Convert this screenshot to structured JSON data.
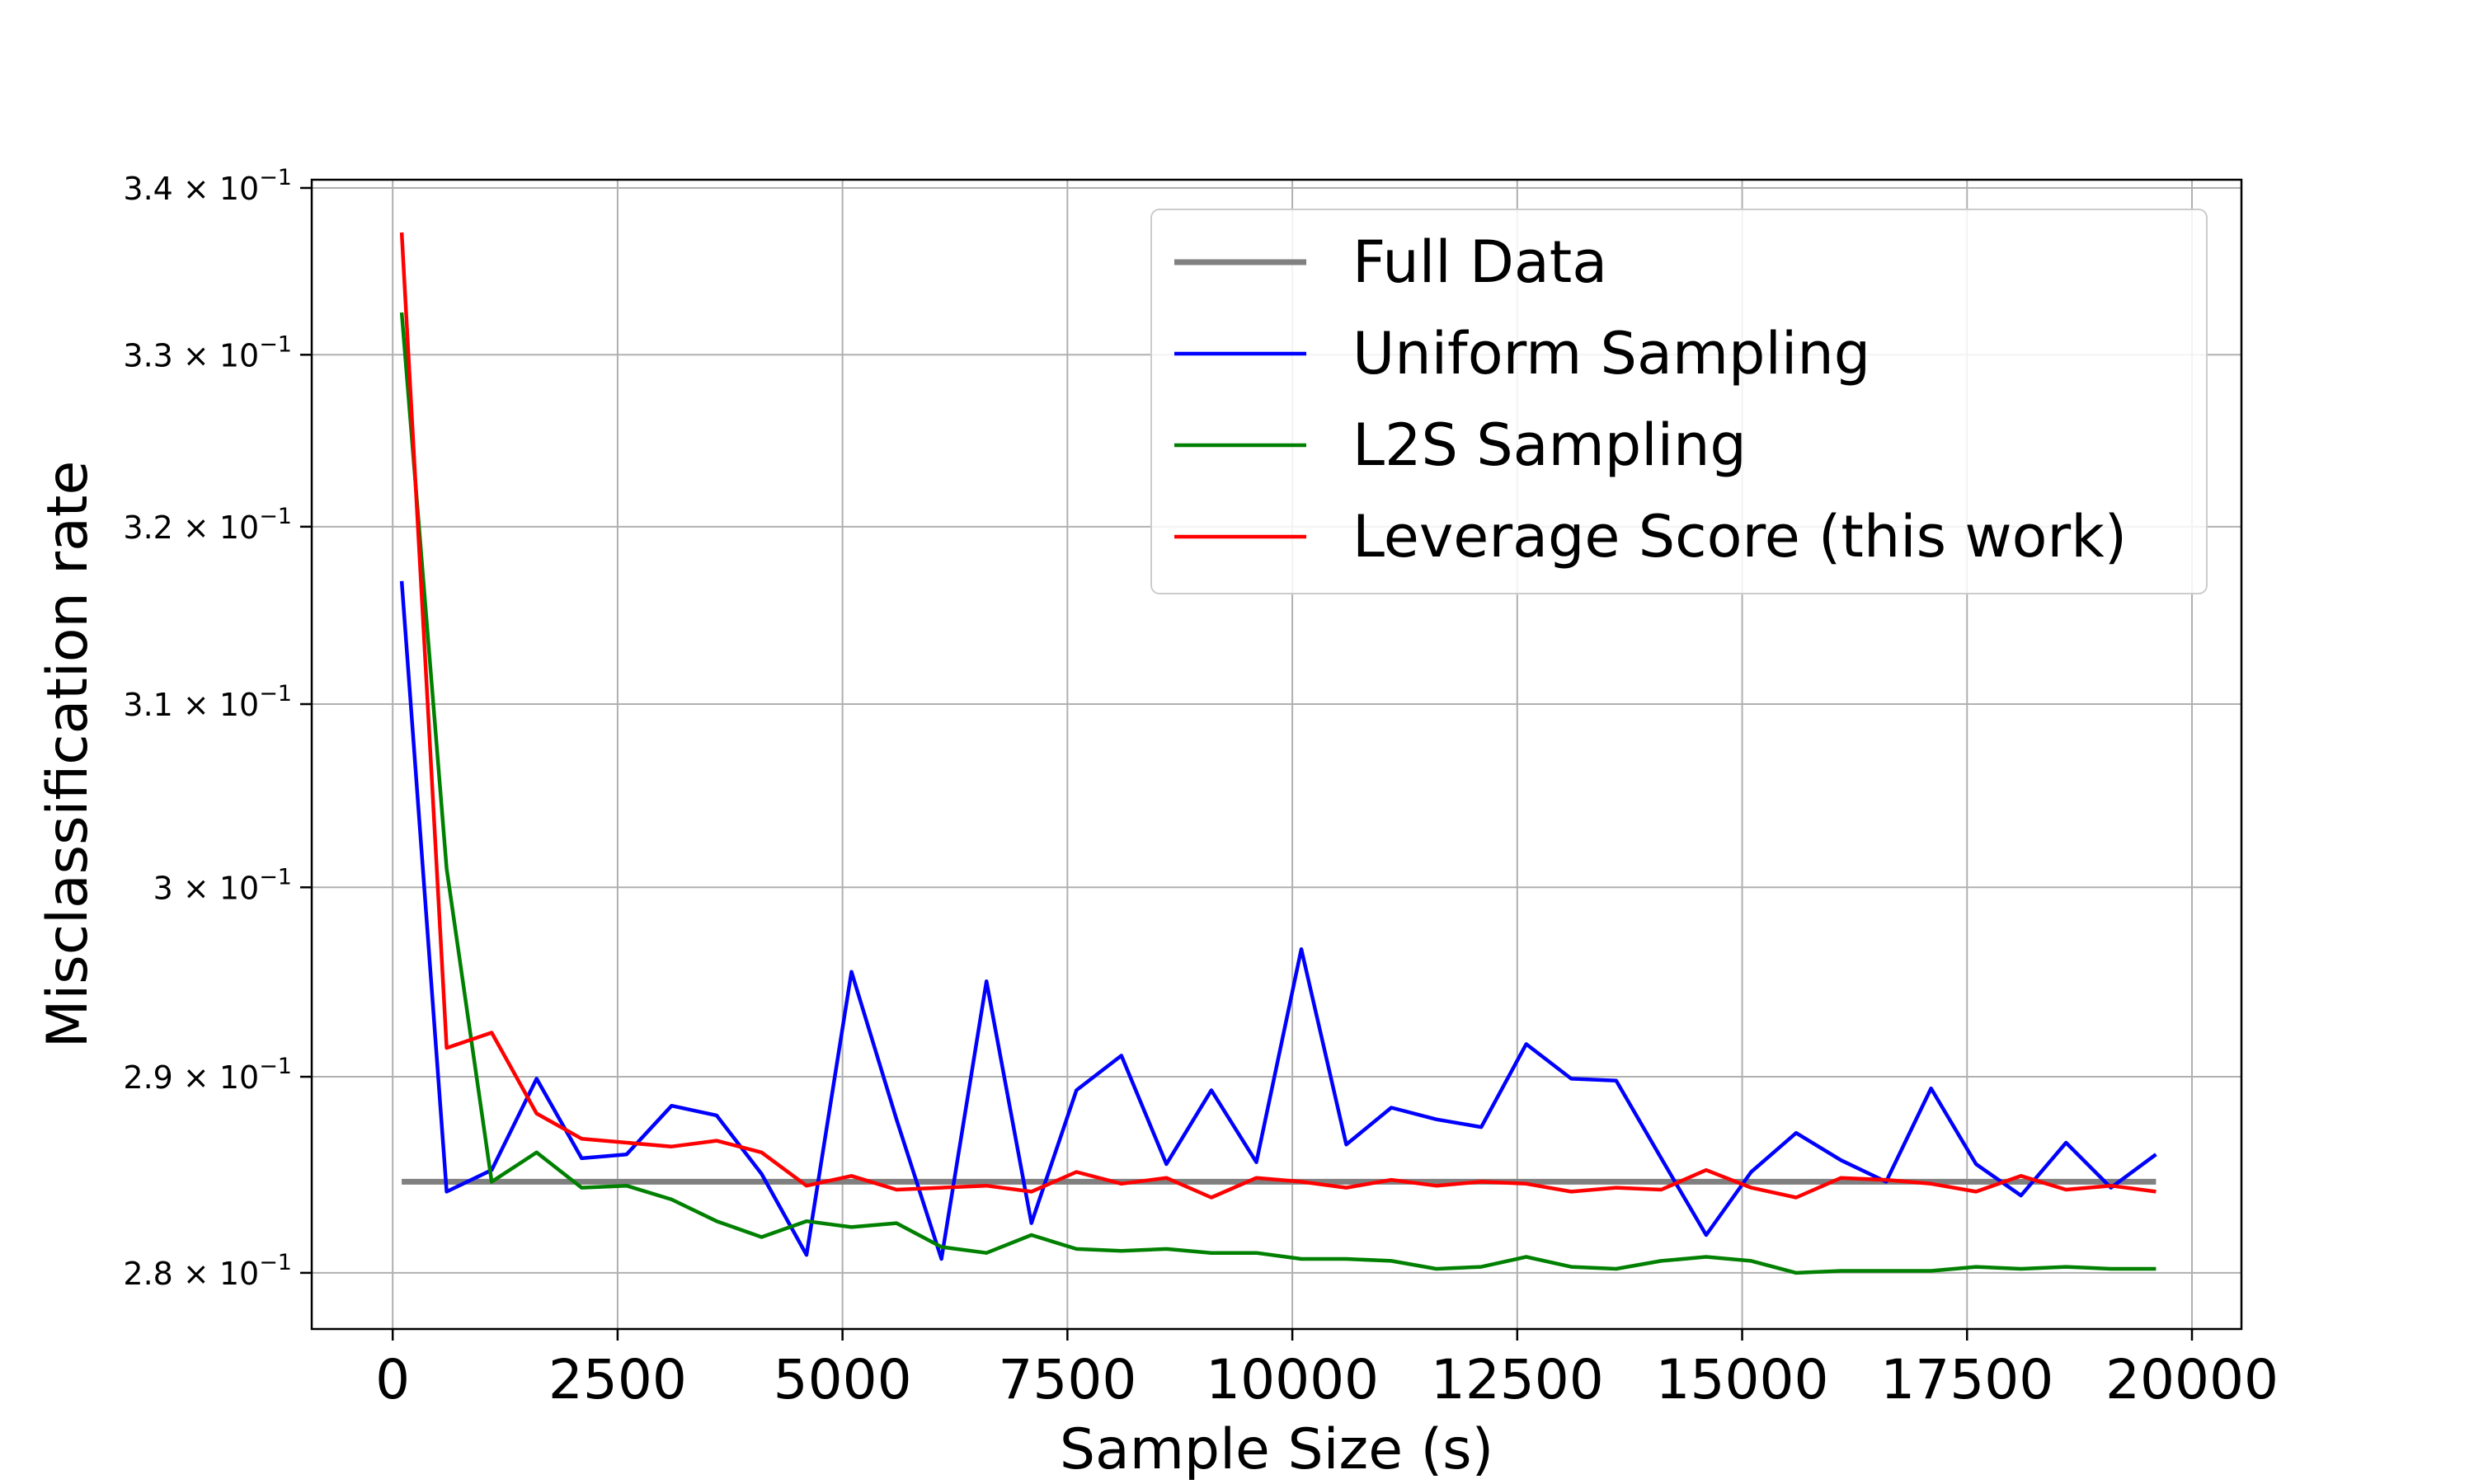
{
  "chart_data": {
    "type": "line",
    "xlabel": "Sample Size (s)",
    "ylabel": "Misclassification rate",
    "xlim": [
      -900,
      20550
    ],
    "ylim": [
      0.2772,
      0.3405
    ],
    "y_scale": "log",
    "grid": true,
    "legend_position": "top-right",
    "x_ticks": [
      {
        "value": 0,
        "label": "0"
      },
      {
        "value": 2500,
        "label": "2500"
      },
      {
        "value": 5000,
        "label": "5000"
      },
      {
        "value": 7500,
        "label": "7500"
      },
      {
        "value": 10000,
        "label": "10000"
      },
      {
        "value": 12500,
        "label": "12500"
      },
      {
        "value": 15000,
        "label": "15000"
      },
      {
        "value": 17500,
        "label": "17500"
      },
      {
        "value": 20000,
        "label": "20000"
      }
    ],
    "y_ticks": [
      {
        "value": 0.28,
        "mant": "2.8",
        "base": "10",
        "exp": "−1"
      },
      {
        "value": 0.29,
        "mant": "2.9",
        "base": "10",
        "exp": "−1"
      },
      {
        "value": 0.3,
        "mant": "3",
        "base": "10",
        "exp": "−1"
      },
      {
        "value": 0.31,
        "mant": "3.1",
        "base": "10",
        "exp": "−1"
      },
      {
        "value": 0.32,
        "mant": "3.2",
        "base": "10",
        "exp": "−1"
      },
      {
        "value": 0.33,
        "mant": "3.3",
        "base": "10",
        "exp": "−1"
      },
      {
        "value": 0.34,
        "mant": "3.4",
        "base": "10",
        "exp": "−1"
      }
    ],
    "x": [
      100,
      600,
      1100,
      1600,
      2100,
      2600,
      3100,
      3600,
      4100,
      4600,
      5100,
      5600,
      6100,
      6600,
      7100,
      7600,
      8100,
      8600,
      9100,
      9600,
      10100,
      10600,
      11100,
      11600,
      12100,
      12600,
      13100,
      13600,
      14100,
      14600,
      15100,
      15600,
      16100,
      16600,
      17100,
      17600,
      18100,
      18600,
      19100,
      19600
    ],
    "series": [
      {
        "name": "Full Data",
        "color": "#808080",
        "values": [
          0.2846,
          0.2846,
          0.2846,
          0.2846,
          0.2846,
          0.2846,
          0.2846,
          0.2846,
          0.2846,
          0.2846,
          0.2846,
          0.2846,
          0.2846,
          0.2846,
          0.2846,
          0.2846,
          0.2846,
          0.2846,
          0.2846,
          0.2846,
          0.2846,
          0.2846,
          0.2846,
          0.2846,
          0.2846,
          0.2846,
          0.2846,
          0.2846,
          0.2846,
          0.2846,
          0.2846,
          0.2846,
          0.2846,
          0.2846,
          0.2846,
          0.2846,
          0.2846,
          0.2846,
          0.2846,
          0.2846
        ]
      },
      {
        "name": "Uniform Sampling",
        "color": "#0000ff",
        "values": [
          0.3169,
          0.2841,
          0.2852,
          0.2899,
          0.2858,
          0.286,
          0.2885,
          0.288,
          0.285,
          0.2809,
          0.2955,
          0.2878,
          0.2807,
          0.295,
          0.2825,
          0.2893,
          0.2911,
          0.2855,
          0.2893,
          0.2856,
          0.2967,
          0.2865,
          0.2884,
          0.2878,
          0.2874,
          0.2917,
          0.2899,
          0.2898,
          0.2858,
          0.2819,
          0.2851,
          0.2871,
          0.2857,
          0.2846,
          0.2894,
          0.2855,
          0.2839,
          0.2866,
          0.2843,
          0.286
        ]
      },
      {
        "name": "L2S Sampling",
        "color": "#008000",
        "values": [
          0.3325,
          0.301,
          0.2846,
          0.2861,
          0.2843,
          0.2844,
          0.2837,
          0.2826,
          0.2818,
          0.2826,
          0.2823,
          0.2825,
          0.2813,
          0.281,
          0.2819,
          0.2812,
          0.2811,
          0.2812,
          0.281,
          0.281,
          0.2807,
          0.2807,
          0.2806,
          0.2802,
          0.2803,
          0.2808,
          0.2803,
          0.2802,
          0.2806,
          0.2808,
          0.2806,
          0.28,
          0.2801,
          0.2801,
          0.2801,
          0.2803,
          0.2802,
          0.2803,
          0.2802,
          0.2802
        ]
      },
      {
        "name": "Leverage Score (this work)",
        "color": "#ff0000",
        "values": [
          0.3373,
          0.2915,
          0.2923,
          0.2881,
          0.2868,
          0.2866,
          0.2864,
          0.2867,
          0.2861,
          0.2844,
          0.2849,
          0.2842,
          0.2843,
          0.2844,
          0.2841,
          0.2851,
          0.2845,
          0.2848,
          0.2838,
          0.2848,
          0.2846,
          0.2843,
          0.2847,
          0.2844,
          0.2846,
          0.2845,
          0.2841,
          0.2843,
          0.2842,
          0.2852,
          0.2843,
          0.2838,
          0.2848,
          0.2847,
          0.2845,
          0.2841,
          0.2849,
          0.2842,
          0.2844,
          0.2841
        ]
      }
    ]
  }
}
